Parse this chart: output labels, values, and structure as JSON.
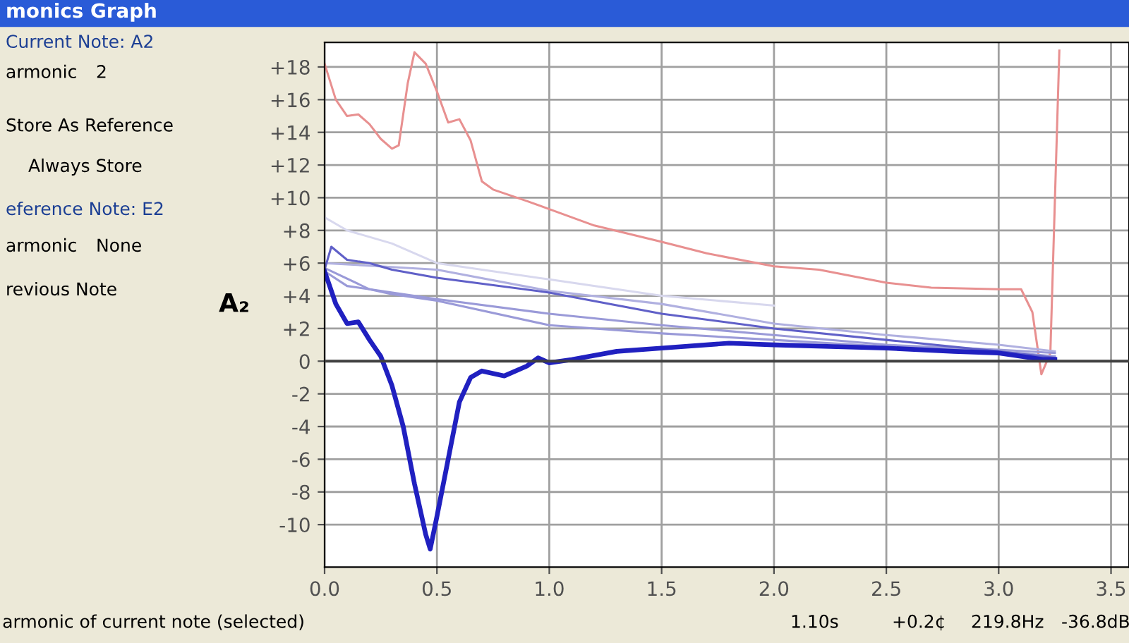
{
  "chart_data": {
    "type": "line",
    "ylabel": "A₂",
    "xlim": [
      0,
      3.58
    ],
    "ylim": [
      -12.6,
      19.5
    ],
    "xticks": [
      {
        "value": 0,
        "label": "0.0"
      },
      {
        "value": 0.5,
        "label": "0.5"
      },
      {
        "value": 1,
        "label": "1.0"
      },
      {
        "value": 1.5,
        "label": "1.5"
      },
      {
        "value": 2,
        "label": "2.0"
      },
      {
        "value": 2.5,
        "label": "2.5"
      },
      {
        "value": 3,
        "label": "3.0"
      },
      {
        "value": 3.5,
        "label": "3.5"
      }
    ],
    "yticks": [
      {
        "value": -10,
        "label": "-10"
      },
      {
        "value": -8,
        "label": "-8"
      },
      {
        "value": -6,
        "label": "-6"
      },
      {
        "value": -4,
        "label": "-4"
      },
      {
        "value": -2,
        "label": "-2"
      },
      0,
      {
        "value": 2,
        "label": "+2"
      },
      {
        "value": 4,
        "label": "+4"
      },
      {
        "value": 6,
        "label": "+6"
      },
      {
        "value": 8,
        "label": "+8"
      },
      {
        "value": 10,
        "label": "+10"
      },
      {
        "value": 12,
        "label": "+12"
      },
      {
        "value": 14,
        "label": "+14"
      },
      {
        "value": 16,
        "label": "+16"
      },
      {
        "value": 18,
        "label": "+18"
      }
    ],
    "grid": true,
    "legend": false,
    "marker": "none",
    "line_style": "solid",
    "ref_lines": [
      {
        "axis": "y",
        "value": 0,
        "color": "#404040"
      }
    ],
    "series": [
      {
        "color": "#e89090",
        "x": [
          0,
          0.05,
          0.1,
          0.15,
          0.2,
          0.25,
          0.3,
          0.33,
          0.37,
          0.4,
          0.45,
          0.5,
          0.55,
          0.6,
          0.65,
          0.7,
          0.75,
          0.9,
          1.0,
          1.2,
          1.5,
          1.7,
          2.0,
          2.2,
          2.5,
          2.7,
          3.0,
          3.1,
          3.15,
          3.19,
          3.23,
          3.27
        ],
        "values": [
          18.2,
          16,
          15,
          15.1,
          14.5,
          13.6,
          13,
          13.2,
          17,
          18.9,
          18.2,
          16.5,
          14.6,
          14.8,
          13.5,
          11,
          10.5,
          9.8,
          9.3,
          8.3,
          7.3,
          6.6,
          5.8,
          5.6,
          4.8,
          4.5,
          4.4,
          4.4,
          3,
          -0.8,
          0.5,
          19
        ]
      },
      {
        "color": "#d8d8ee",
        "x": [
          0,
          0.1,
          0.3,
          0.5,
          1.0,
          1.5,
          2.0
        ],
        "values": [
          8.8,
          8,
          7.2,
          6,
          5,
          4,
          3.4
        ]
      },
      {
        "color": "#b0b0e0",
        "x": [
          0,
          0.5,
          1.0,
          1.5,
          2.0,
          2.5,
          3.0,
          3.25
        ],
        "values": [
          6,
          5.6,
          4.3,
          3.5,
          2.3,
          1.6,
          1,
          0.6
        ]
      },
      {
        "color": "#9a9ad8",
        "x": [
          0,
          0.2,
          0.5,
          1.0,
          1.5,
          2.0,
          2.5,
          3.0,
          3.25
        ],
        "values": [
          5.7,
          4.4,
          3.8,
          2.9,
          2.2,
          1.6,
          1,
          0.7,
          0.5
        ]
      },
      {
        "color": "#9a9ad8",
        "x": [
          0,
          0.1,
          0.2,
          0.3,
          0.5,
          1.0,
          1.5,
          2.0,
          2.5,
          3.0,
          3.25
        ],
        "values": [
          5.5,
          4.6,
          4.4,
          4.1,
          3.7,
          2.2,
          1.7,
          1.3,
          0.9,
          0.6,
          0.3
        ]
      },
      {
        "color": "#6060c8",
        "x": [
          0,
          0.03,
          0.1,
          0.2,
          0.3,
          0.5,
          1.0,
          1.5,
          2.0,
          2.5,
          3.0,
          3.25
        ],
        "values": [
          5.6,
          7,
          6.2,
          6,
          5.6,
          5.1,
          4.2,
          2.9,
          2,
          1.3,
          0.6,
          0.2
        ]
      },
      {
        "color": "#2020c0",
        "x": [
          0,
          0.05,
          0.1,
          0.15,
          0.2,
          0.25,
          0.3,
          0.35,
          0.4,
          0.45,
          0.47,
          0.5,
          0.55,
          0.6,
          0.65,
          0.7,
          0.8,
          0.9,
          0.95,
          1.0,
          1.1,
          1.3,
          1.5,
          1.8,
          2.0,
          2.5,
          2.8,
          3.0,
          3.2,
          3.25
        ],
        "values": [
          5.5,
          3.5,
          2.3,
          2.4,
          1.3,
          0.3,
          -1.5,
          -4,
          -7.5,
          -10.6,
          -11.5,
          -9.5,
          -6,
          -2.5,
          -1,
          -0.6,
          -0.9,
          -0.3,
          0.2,
          -0.1,
          0.1,
          0.6,
          0.8,
          1.1,
          1,
          0.8,
          0.6,
          0.5,
          0.1,
          0.1
        ]
      }
    ],
    "annotations": [
      "monics Graph",
      "Current Note: A2",
      "armonic",
      "2",
      "Store As Reference",
      "Always Store",
      "eference Note: E2",
      "armonic",
      "None",
      "revious Note",
      "armonic of current note (selected)",
      "1.10s",
      "+0.2¢",
      "219.8Hz",
      "-36.8dB"
    ]
  }
}
